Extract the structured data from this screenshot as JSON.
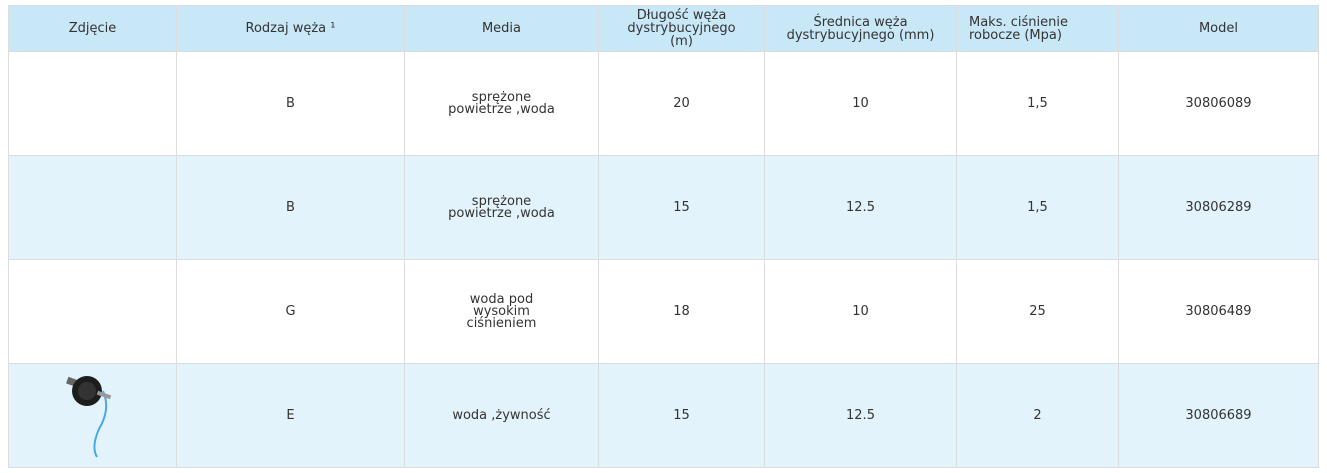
{
  "table": {
    "header": [
      "Zdjęcie",
      "Rodzaj węża ¹",
      "Media",
      "Długość węża dystrybucyjnego (m)",
      "Średnica węża dystrybucyjnego (mm)",
      "Maks. ciśnienie robocze (Mpa)",
      "Model"
    ],
    "rows": [
      {
        "type": "B",
        "media": "sprężone powietrze ,woda",
        "length": "20",
        "diameter": "10",
        "pressure": "1,5",
        "model": "30806089"
      },
      {
        "type": "B",
        "media": "sprężone powietrze ,woda",
        "length": "15",
        "diameter": "12.5",
        "pressure": "1,5",
        "model": "30806289"
      },
      {
        "type": "G",
        "media": "woda pod wysokim ciśnieniem",
        "length": "18",
        "diameter": "10",
        "pressure": "25",
        "model": "30806489"
      },
      {
        "type": "E",
        "media": "woda ,żywność",
        "length": "15",
        "diameter": "12.5",
        "pressure": "2",
        "model": "30806689"
      }
    ]
  }
}
